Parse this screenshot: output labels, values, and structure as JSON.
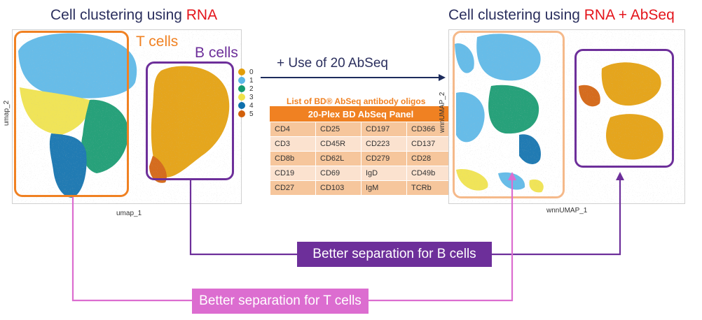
{
  "left": {
    "title_prefix": "Cell clustering using ",
    "title_highlight": "RNA",
    "x_axis": "umap_1",
    "y_axis": "umap_2",
    "t_label": "T cells",
    "b_label": "B cells"
  },
  "right": {
    "title_prefix": "Cell clustering using ",
    "title_highlight": "RNA + AbSeq",
    "x_axis": "wnnUMAP_1",
    "y_axis": "wnnUMAP_2"
  },
  "legend": {
    "items": [
      {
        "label": "0",
        "color": "#e39e0a"
      },
      {
        "label": "1",
        "color": "#5bb7e7"
      },
      {
        "label": "2",
        "color": "#159a6f"
      },
      {
        "label": "3",
        "color": "#efe24a"
      },
      {
        "label": "4",
        "color": "#0f70ad"
      },
      {
        "label": "5",
        "color": "#d2600b"
      }
    ]
  },
  "center": {
    "arrow_label": "+ Use of 20 AbSeq",
    "list_title": "List of BD® AbSeq antibody oligos",
    "panel_header": "20-Plex BD AbSeq Panel",
    "rows": [
      [
        "CD4",
        "CD25",
        "CD197",
        "CD366"
      ],
      [
        "CD3",
        "CD45R",
        "CD223",
        "CD137"
      ],
      [
        "CD8b",
        "CD62L",
        "CD279",
        "CD28"
      ],
      [
        "CD19",
        "CD69",
        "IgD",
        "CD49b"
      ],
      [
        "CD27",
        "CD103",
        "IgM",
        "TCRb"
      ]
    ]
  },
  "annotations": {
    "b_separation": "Better separation for B cells",
    "t_separation": "Better separation for T cells"
  },
  "colors": {
    "orange": "#f08122",
    "light_orange": "#f5b98a",
    "purple": "#6d2f9a",
    "pink": "#dc6dd0",
    "navy": "#1d2c5c",
    "red": "#e4141b"
  }
}
